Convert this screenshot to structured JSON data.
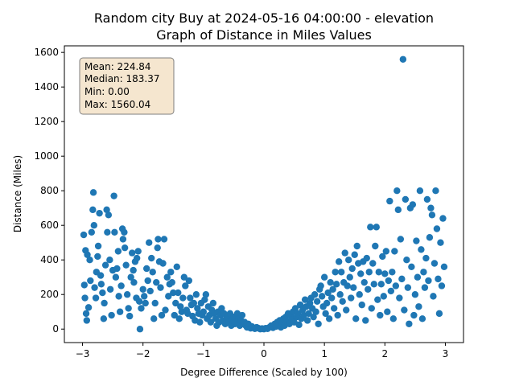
{
  "chart_data": {
    "type": "scatter",
    "title_lines": [
      "Random city Buy at 2024-05-16 04:00:00  - elevation",
      "Graph of Distance in Miles Values"
    ],
    "xlabel": "Degree Difference (Scaled by 100)",
    "ylabel": "Distance (Miles)",
    "xlim": [
      -3.3,
      3.3
    ],
    "ylim": [
      -78,
      1638
    ],
    "x_ticks": [
      -3,
      -2,
      -1,
      0,
      1,
      2,
      3
    ],
    "y_ticks": [
      0,
      200,
      400,
      600,
      800,
      1000,
      1200,
      1400,
      1600
    ],
    "grid": false,
    "marker_color": "#1f77b4",
    "stats_box_bg": "#f5e6cf",
    "stats": [
      "Mean: 224.84",
      "Median: 183.37",
      "Min: 0.00",
      "Max: 1560.04"
    ],
    "points": [
      [
        -2.98,
        545
      ],
      [
        -2.95,
        455
      ],
      [
        -2.92,
        430
      ],
      [
        -2.97,
        255
      ],
      [
        -2.96,
        180
      ],
      [
        -2.94,
        90
      ],
      [
        -2.93,
        50
      ],
      [
        -2.9,
        125
      ],
      [
        -2.88,
        400
      ],
      [
        -2.87,
        280
      ],
      [
        -2.85,
        560
      ],
      [
        -2.83,
        690
      ],
      [
        -2.82,
        790
      ],
      [
        -2.81,
        600
      ],
      [
        -2.8,
        240
      ],
      [
        -2.78,
        180
      ],
      [
        -2.77,
        330
      ],
      [
        -2.75,
        420
      ],
      [
        -2.74,
        480
      ],
      [
        -2.72,
        670
      ],
      [
        -2.7,
        310
      ],
      [
        -2.69,
        260
      ],
      [
        -2.67,
        210
      ],
      [
        -2.65,
        60
      ],
      [
        -2.64,
        150
      ],
      [
        -2.62,
        370
      ],
      [
        -2.6,
        690
      ],
      [
        -2.59,
        560
      ],
      [
        -2.57,
        660
      ],
      [
        -2.55,
        400
      ],
      [
        -2.54,
        230
      ],
      [
        -2.52,
        80
      ],
      [
        -2.5,
        340
      ],
      [
        -2.48,
        770
      ],
      [
        -2.47,
        560
      ],
      [
        -2.45,
        300
      ],
      [
        -2.43,
        350
      ],
      [
        -2.41,
        450
      ],
      [
        -2.4,
        190
      ],
      [
        -2.38,
        100
      ],
      [
        -2.36,
        250
      ],
      [
        -2.34,
        580
      ],
      [
        -2.33,
        520
      ],
      [
        -2.31,
        560
      ],
      [
        -2.3,
        470
      ],
      [
        -2.28,
        370
      ],
      [
        -2.26,
        200
      ],
      [
        -2.24,
        120
      ],
      [
        -2.22,
        75
      ],
      [
        -2.2,
        300
      ],
      [
        -2.18,
        440
      ],
      [
        -2.16,
        340
      ],
      [
        -2.15,
        270
      ],
      [
        -2.13,
        390
      ],
      [
        -2.11,
        180
      ],
      [
        -2.1,
        410
      ],
      [
        -2.08,
        450
      ],
      [
        -2.06,
        160
      ],
      [
        -2.05,
        0
      ],
      [
        -2.03,
        120
      ],
      [
        -2.0,
        230
      ],
      [
        -1.98,
        190
      ],
      [
        -1.96,
        150
      ],
      [
        -1.94,
        350
      ],
      [
        -1.92,
        280
      ],
      [
        -1.9,
        500
      ],
      [
        -1.88,
        220
      ],
      [
        -1.86,
        410
      ],
      [
        -1.84,
        330
      ],
      [
        -1.82,
        60
      ],
      [
        -1.8,
        150
      ],
      [
        -1.78,
        270
      ],
      [
        -1.76,
        470
      ],
      [
        -1.75,
        520
      ],
      [
        -1.73,
        390
      ],
      [
        -1.71,
        240
      ],
      [
        -1.69,
        80
      ],
      [
        -1.67,
        380
      ],
      [
        -1.65,
        520
      ],
      [
        -1.63,
        110
      ],
      [
        -1.6,
        300
      ],
      [
        -1.58,
        190
      ],
      [
        -1.56,
        260
      ],
      [
        -1.54,
        330
      ],
      [
        -1.52,
        270
      ],
      [
        -1.5,
        210
      ],
      [
        -1.48,
        80
      ],
      [
        -1.46,
        150
      ],
      [
        -1.44,
        360
      ],
      [
        -1.42,
        210
      ],
      [
        -1.4,
        60
      ],
      [
        -1.38,
        130
      ],
      [
        -1.36,
        100
      ],
      [
        -1.34,
        180
      ],
      [
        -1.32,
        300
      ],
      [
        -1.3,
        250
      ],
      [
        -1.28,
        110
      ],
      [
        -1.26,
        90
      ],
      [
        -1.24,
        280
      ],
      [
        -1.22,
        180
      ],
      [
        -1.2,
        140
      ],
      [
        -1.18,
        75
      ],
      [
        -1.16,
        150
      ],
      [
        -1.14,
        50
      ],
      [
        -1.12,
        200
      ],
      [
        -1.1,
        120
      ],
      [
        -1.08,
        90
      ],
      [
        -1.06,
        40
      ],
      [
        -1.04,
        150
      ],
      [
        -1.02,
        80
      ],
      [
        -1.0,
        100
      ],
      [
        -0.98,
        170
      ],
      [
        -0.96,
        200
      ],
      [
        -0.94,
        60
      ],
      [
        -0.92,
        130
      ],
      [
        -0.9,
        80
      ],
      [
        -0.88,
        40
      ],
      [
        -0.86,
        110
      ],
      [
        -0.84,
        150
      ],
      [
        -0.82,
        90
      ],
      [
        -0.8,
        60
      ],
      [
        -0.78,
        20
      ],
      [
        -0.76,
        100
      ],
      [
        -0.74,
        40
      ],
      [
        -0.72,
        80
      ],
      [
        -0.7,
        120
      ],
      [
        -0.68,
        50
      ],
      [
        -0.66,
        90
      ],
      [
        -0.64,
        30
      ],
      [
        -0.62,
        60
      ],
      [
        -0.6,
        70
      ],
      [
        -0.58,
        40
      ],
      [
        -0.56,
        90
      ],
      [
        -0.54,
        20
      ],
      [
        -0.52,
        50
      ],
      [
        -0.5,
        70
      ],
      [
        -0.48,
        30
      ],
      [
        -0.46,
        40
      ],
      [
        -0.44,
        90
      ],
      [
        -0.42,
        60
      ],
      [
        -0.4,
        20
      ],
      [
        -0.38,
        50
      ],
      [
        -0.36,
        80
      ],
      [
        -0.34,
        30
      ],
      [
        -0.32,
        40
      ],
      [
        -0.3,
        20
      ],
      [
        -0.28,
        10
      ],
      [
        -0.26,
        30
      ],
      [
        -0.24,
        20
      ],
      [
        -0.22,
        5
      ],
      [
        -0.2,
        15
      ],
      [
        -0.18,
        8
      ],
      [
        -0.15,
        2
      ],
      [
        -0.12,
        10
      ],
      [
        -0.09,
        5
      ],
      [
        -0.06,
        0
      ],
      [
        -0.03,
        3
      ],
      [
        0.0,
        0
      ],
      [
        0.03,
        5
      ],
      [
        0.06,
        2
      ],
      [
        0.09,
        10
      ],
      [
        0.12,
        20
      ],
      [
        0.15,
        8
      ],
      [
        0.18,
        30
      ],
      [
        0.2,
        15
      ],
      [
        0.22,
        40
      ],
      [
        0.24,
        25
      ],
      [
        0.26,
        50
      ],
      [
        0.28,
        10
      ],
      [
        0.3,
        35
      ],
      [
        0.32,
        60
      ],
      [
        0.34,
        20
      ],
      [
        0.36,
        70
      ],
      [
        0.38,
        45
      ],
      [
        0.4,
        90
      ],
      [
        0.42,
        30
      ],
      [
        0.44,
        80
      ],
      [
        0.46,
        55
      ],
      [
        0.48,
        100
      ],
      [
        0.5,
        40
      ],
      [
        0.52,
        120
      ],
      [
        0.54,
        70
      ],
      [
        0.56,
        90
      ],
      [
        0.58,
        25
      ],
      [
        0.6,
        140
      ],
      [
        0.62,
        60
      ],
      [
        0.64,
        110
      ],
      [
        0.66,
        80
      ],
      [
        0.68,
        170
      ],
      [
        0.7,
        130
      ],
      [
        0.72,
        50
      ],
      [
        0.74,
        90
      ],
      [
        0.76,
        150
      ],
      [
        0.78,
        180
      ],
      [
        0.8,
        120
      ],
      [
        0.82,
        70
      ],
      [
        0.84,
        200
      ],
      [
        0.86,
        100
      ],
      [
        0.88,
        160
      ],
      [
        0.9,
        30
      ],
      [
        0.92,
        230
      ],
      [
        0.94,
        250
      ],
      [
        0.96,
        190
      ],
      [
        0.98,
        130
      ],
      [
        1.0,
        300
      ],
      [
        1.02,
        90
      ],
      [
        1.04,
        150
      ],
      [
        1.06,
        210
      ],
      [
        1.08,
        60
      ],
      [
        1.1,
        270
      ],
      [
        1.12,
        180
      ],
      [
        1.14,
        230
      ],
      [
        1.16,
        120
      ],
      [
        1.18,
        330
      ],
      [
        1.2,
        260
      ],
      [
        1.22,
        80
      ],
      [
        1.24,
        390
      ],
      [
        1.26,
        200
      ],
      [
        1.28,
        330
      ],
      [
        1.3,
        160
      ],
      [
        1.32,
        270
      ],
      [
        1.34,
        440
      ],
      [
        1.36,
        110
      ],
      [
        1.38,
        250
      ],
      [
        1.4,
        400
      ],
      [
        1.42,
        300
      ],
      [
        1.44,
        180
      ],
      [
        1.46,
        350
      ],
      [
        1.48,
        240
      ],
      [
        1.5,
        430
      ],
      [
        1.52,
        60
      ],
      [
        1.54,
        480
      ],
      [
        1.56,
        380
      ],
      [
        1.58,
        200
      ],
      [
        1.6,
        320
      ],
      [
        1.62,
        140
      ],
      [
        1.64,
        390
      ],
      [
        1.66,
        270
      ],
      [
        1.68,
        50
      ],
      [
        1.7,
        410
      ],
      [
        1.72,
        230
      ],
      [
        1.74,
        330
      ],
      [
        1.76,
        590
      ],
      [
        1.78,
        120
      ],
      [
        1.8,
        380
      ],
      [
        1.82,
        260
      ],
      [
        1.84,
        480
      ],
      [
        1.86,
        590
      ],
      [
        1.88,
        170
      ],
      [
        1.9,
        330
      ],
      [
        1.92,
        80
      ],
      [
        1.94,
        260
      ],
      [
        1.96,
        420
      ],
      [
        1.98,
        190
      ],
      [
        2.0,
        320
      ],
      [
        2.02,
        450
      ],
      [
        2.04,
        100
      ],
      [
        2.06,
        280
      ],
      [
        2.08,
        740
      ],
      [
        2.1,
        220
      ],
      [
        2.12,
        330
      ],
      [
        2.14,
        60
      ],
      [
        2.16,
        450
      ],
      [
        2.18,
        250
      ],
      [
        2.2,
        800
      ],
      [
        2.22,
        690
      ],
      [
        2.24,
        180
      ],
      [
        2.26,
        520
      ],
      [
        2.28,
        290
      ],
      [
        2.3,
        1560
      ],
      [
        2.32,
        110
      ],
      [
        2.34,
        750
      ],
      [
        2.36,
        400
      ],
      [
        2.38,
        240
      ],
      [
        2.4,
        30
      ],
      [
        2.42,
        700
      ],
      [
        2.44,
        360
      ],
      [
        2.46,
        720
      ],
      [
        2.48,
        80
      ],
      [
        2.5,
        200
      ],
      [
        2.52,
        510
      ],
      [
        2.54,
        300
      ],
      [
        2.56,
        130
      ],
      [
        2.58,
        800
      ],
      [
        2.6,
        460
      ],
      [
        2.62,
        60
      ],
      [
        2.64,
        330
      ],
      [
        2.66,
        240
      ],
      [
        2.68,
        410
      ],
      [
        2.7,
        750
      ],
      [
        2.72,
        280
      ],
      [
        2.74,
        530
      ],
      [
        2.76,
        700
      ],
      [
        2.78,
        660
      ],
      [
        2.8,
        190
      ],
      [
        2.82,
        380
      ],
      [
        2.84,
        800
      ],
      [
        2.86,
        580
      ],
      [
        2.88,
        290
      ],
      [
        2.9,
        90
      ],
      [
        2.92,
        500
      ],
      [
        2.94,
        250
      ],
      [
        2.96,
        640
      ],
      [
        2.98,
        360
      ]
    ]
  }
}
